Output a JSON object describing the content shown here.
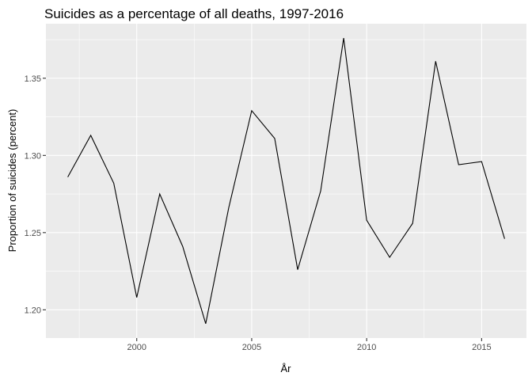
{
  "chart_data": {
    "type": "line",
    "title": "Suicides as a percentage of all deaths, 1997-2016",
    "xlabel": "År",
    "ylabel": "Proportion of suicides (percent)",
    "x": [
      1997,
      1998,
      1999,
      2000,
      2001,
      2002,
      2003,
      2004,
      2005,
      2006,
      2007,
      2008,
      2009,
      2010,
      2011,
      2012,
      2013,
      2014,
      2015,
      2016
    ],
    "y": [
      1.286,
      1.313,
      1.282,
      1.208,
      1.275,
      1.241,
      1.191,
      1.266,
      1.329,
      1.311,
      1.226,
      1.277,
      1.376,
      1.258,
      1.234,
      1.256,
      1.361,
      1.294,
      1.296,
      1.246
    ],
    "xlim": [
      1996.05,
      2016.95
    ],
    "ylim": [
      1.1817,
      1.3853
    ],
    "xticks": [
      2000,
      2005,
      2010,
      2015
    ],
    "xtick_labels": [
      "2000",
      "2005",
      "2010",
      "2015"
    ],
    "yticks": [
      1.2,
      1.25,
      1.3,
      1.35
    ],
    "ytick_labels": [
      "1.20",
      "1.25",
      "1.30",
      "1.35"
    ],
    "grid": true,
    "panel_color": "#ebebeb",
    "grid_color": "#ffffff",
    "line_color": "#000000"
  }
}
